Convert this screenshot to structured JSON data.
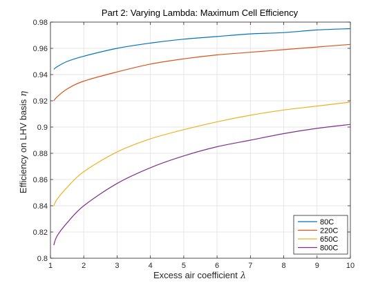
{
  "chart_data": {
    "type": "line",
    "title": "Part 2: Varying Lambda: Maximum Cell Efficiency",
    "xlabel": "Excess air coefficient",
    "xlabel_symbol": "λ",
    "ylabel": "Efficiency on LHV basis",
    "ylabel_symbol": "η",
    "xlim": [
      1,
      10
    ],
    "ylim": [
      0.8,
      0.98
    ],
    "xticks": [
      1,
      2,
      3,
      4,
      5,
      6,
      7,
      8,
      9,
      10
    ],
    "yticks": [
      0.8,
      0.82,
      0.84,
      0.86,
      0.88,
      0.9,
      0.92,
      0.94,
      0.96,
      0.98
    ],
    "xtick_labels": [
      "1",
      "2",
      "3",
      "4",
      "5",
      "6",
      "7",
      "8",
      "9",
      "10"
    ],
    "ytick_labels": [
      "0.8",
      "0.82",
      "0.84",
      "0.86",
      "0.88",
      "0.9",
      "0.92",
      "0.94",
      "0.96",
      "0.98"
    ],
    "grid": true,
    "legend_position": "bottom-right",
    "x": [
      1.1,
      1.2,
      1.5,
      2,
      3,
      4,
      5,
      6,
      7,
      8,
      9,
      10
    ],
    "series": [
      {
        "name": "80C",
        "color": "#0072BD",
        "values": [
          0.944,
          0.946,
          0.95,
          0.954,
          0.96,
          0.964,
          0.967,
          0.969,
          0.971,
          0.972,
          0.974,
          0.975
        ]
      },
      {
        "name": "220C",
        "color": "#D95319",
        "values": [
          0.92,
          0.923,
          0.929,
          0.935,
          0.942,
          0.948,
          0.952,
          0.955,
          0.957,
          0.959,
          0.961,
          0.963
        ]
      },
      {
        "name": "650C",
        "color": "#EDB120",
        "values": [
          0.84,
          0.845,
          0.854,
          0.866,
          0.881,
          0.891,
          0.898,
          0.904,
          0.909,
          0.913,
          0.916,
          0.919
        ]
      },
      {
        "name": "800C",
        "color": "#7E2F8E",
        "values": [
          0.81,
          0.817,
          0.827,
          0.84,
          0.857,
          0.869,
          0.878,
          0.885,
          0.89,
          0.895,
          0.899,
          0.902
        ]
      }
    ]
  }
}
